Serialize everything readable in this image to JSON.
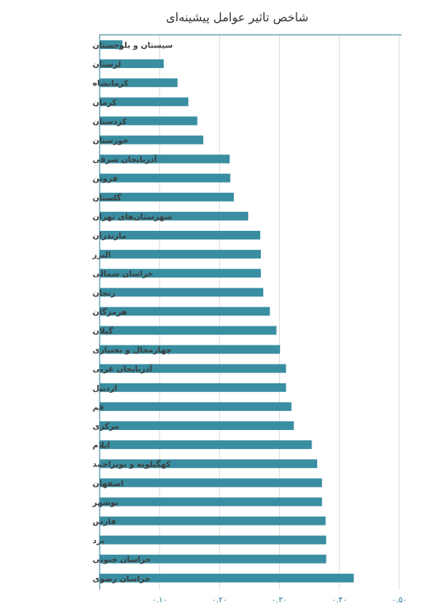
{
  "chart_data": {
    "type": "bar",
    "orientation": "horizontal",
    "title": "شاخص تاثیر عوامل پیشینه‌ای",
    "xlabel": "",
    "ylabel": "",
    "xlim": [
      0,
      0.5
    ],
    "ticks": [
      0.1,
      0.2,
      0.3,
      0.4,
      0.5
    ],
    "tick_labels": [
      "۰.۱۰",
      "۰.۲۰",
      "۰.۳۰",
      "۰.۴۰",
      "۰.۵۰"
    ],
    "grid": true,
    "bar_color": "#3a8ea1",
    "categories": [
      "سیستان و بلوچستان",
      "لرستان",
      "کرمانشاه",
      "کرمان",
      "کردستان",
      "خوزستان",
      "آذربایجان شرقی",
      "قزوین",
      "گلستان",
      "شهرستان‌های تهران",
      "مازندران",
      "البرز",
      "خراسان شمالی",
      "زنجان",
      "هرمزگان",
      "گیلان",
      "چهارمحال و بختیاری",
      "آذربایجان غربی",
      "اردبیل",
      "قم",
      "مرکزی",
      "ایلام",
      "کهگیلویه و بویراحمد",
      "اصفهان",
      "بوشهر",
      "فارس",
      "یزد",
      "خراسان جنوبی",
      "خراسان رضوی"
    ],
    "values": [
      0.038,
      0.107,
      0.13,
      0.148,
      0.163,
      0.173,
      0.217,
      0.218,
      0.224,
      0.248,
      0.268,
      0.269,
      0.269,
      0.273,
      0.284,
      0.295,
      0.301,
      0.311,
      0.311,
      0.32,
      0.324,
      0.354,
      0.363,
      0.371,
      0.371,
      0.377,
      0.378,
      0.378,
      0.424
    ]
  }
}
